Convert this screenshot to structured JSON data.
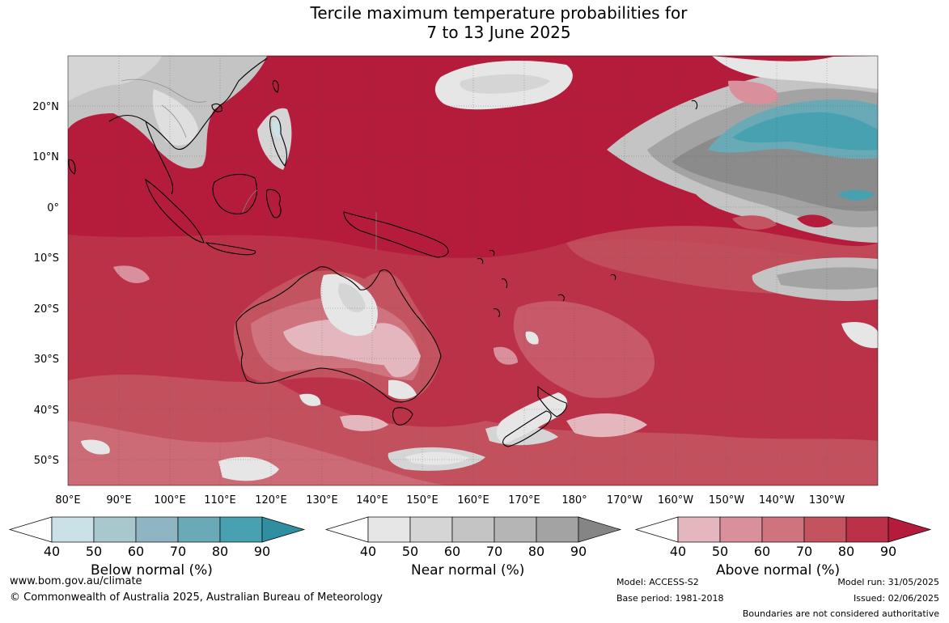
{
  "title_line1": "Tercile maximum temperature probabilities for",
  "title_line2": "7 to 13 June 2025",
  "axes": {
    "lat_labels": [
      "20°N",
      "10°N",
      "0°",
      "10°S",
      "20°S",
      "30°S",
      "40°S",
      "50°S"
    ],
    "lon_labels": [
      "80°E",
      "90°E",
      "100°E",
      "110°E",
      "120°E",
      "130°E",
      "140°E",
      "150°E",
      "160°E",
      "170°E",
      "180°",
      "170°W",
      "160°W",
      "150°W",
      "140°W",
      "130°W"
    ]
  },
  "colorbars": [
    {
      "label": "Below normal (%)",
      "ticks": [
        "40",
        "50",
        "60",
        "70",
        "80",
        "90"
      ],
      "colors": [
        "#c9e1e7",
        "#a9c8cd",
        "#8fb5c3",
        "#6aaab6",
        "#48a1b1",
        "#2f8fa1"
      ]
    },
    {
      "label": "Near normal (%)",
      "ticks": [
        "40",
        "50",
        "60",
        "70",
        "80",
        "90"
      ],
      "colors": [
        "#e6e6e6",
        "#d5d5d5",
        "#c4c4c4",
        "#b5b5b5",
        "#a3a3a3",
        "#858585"
      ]
    },
    {
      "label": "Above normal (%)",
      "ticks": [
        "40",
        "50",
        "60",
        "70",
        "80",
        "90"
      ],
      "colors": [
        "#e4b6be",
        "#d98f9c",
        "#cf737f",
        "#c3545f",
        "#bb3248",
        "#b51c3b"
      ]
    }
  ],
  "footer": {
    "website": "www.bom.gov.au/climate",
    "copyright": "© Commonwealth of Australia 2025, Australian Bureau of Meteorology",
    "model": "Model: ACCESS-S2",
    "base_period": "Base period: 1981-2018",
    "model_run": "Model run: 31/05/2025",
    "issued": "Issued: 02/06/2025",
    "boundaries": "Boundaries are not considered authoritative"
  }
}
